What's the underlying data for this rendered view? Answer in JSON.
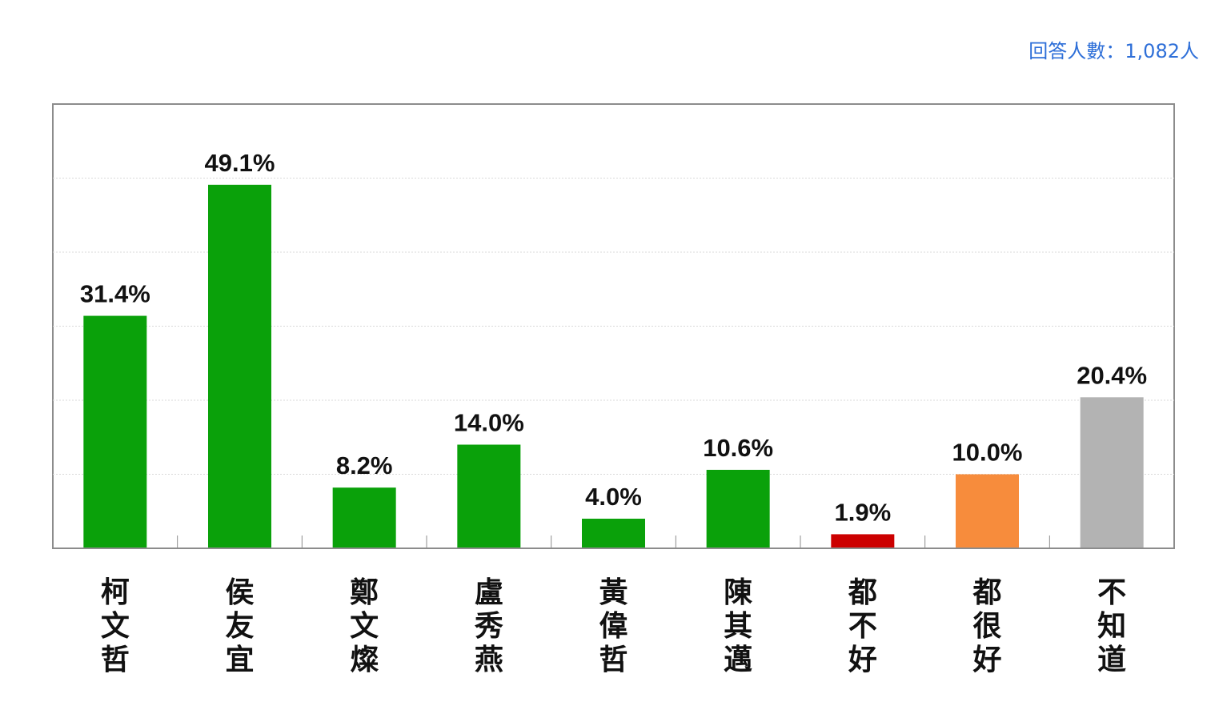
{
  "header": {
    "sample_size": "回答人數：1,082人"
  },
  "chart_data": {
    "type": "bar",
    "title": "",
    "xlabel": "",
    "ylabel": "",
    "ylim": [
      0,
      50
    ],
    "grid": true,
    "categories": [
      "柯文哲",
      "侯友宜",
      "鄭文燦",
      "盧秀燕",
      "黃偉哲",
      "陳其邁",
      "都不好",
      "都很好",
      "不知道"
    ],
    "values": [
      31.4,
      49.1,
      8.2,
      14.0,
      4.0,
      10.6,
      1.9,
      10.0,
      20.4
    ],
    "value_labels": [
      "31.4%",
      "49.1%",
      "8.2%",
      "14.0%",
      "4.0%",
      "10.6%",
      "1.9%",
      "10.0%",
      "20.4%"
    ],
    "bar_colors": [
      "#0aa10a",
      "#0aa10a",
      "#0aa10a",
      "#0aa10a",
      "#0aa10a",
      "#0aa10a",
      "#cc0000",
      "#f78c3c",
      "#b3b3b3"
    ]
  }
}
